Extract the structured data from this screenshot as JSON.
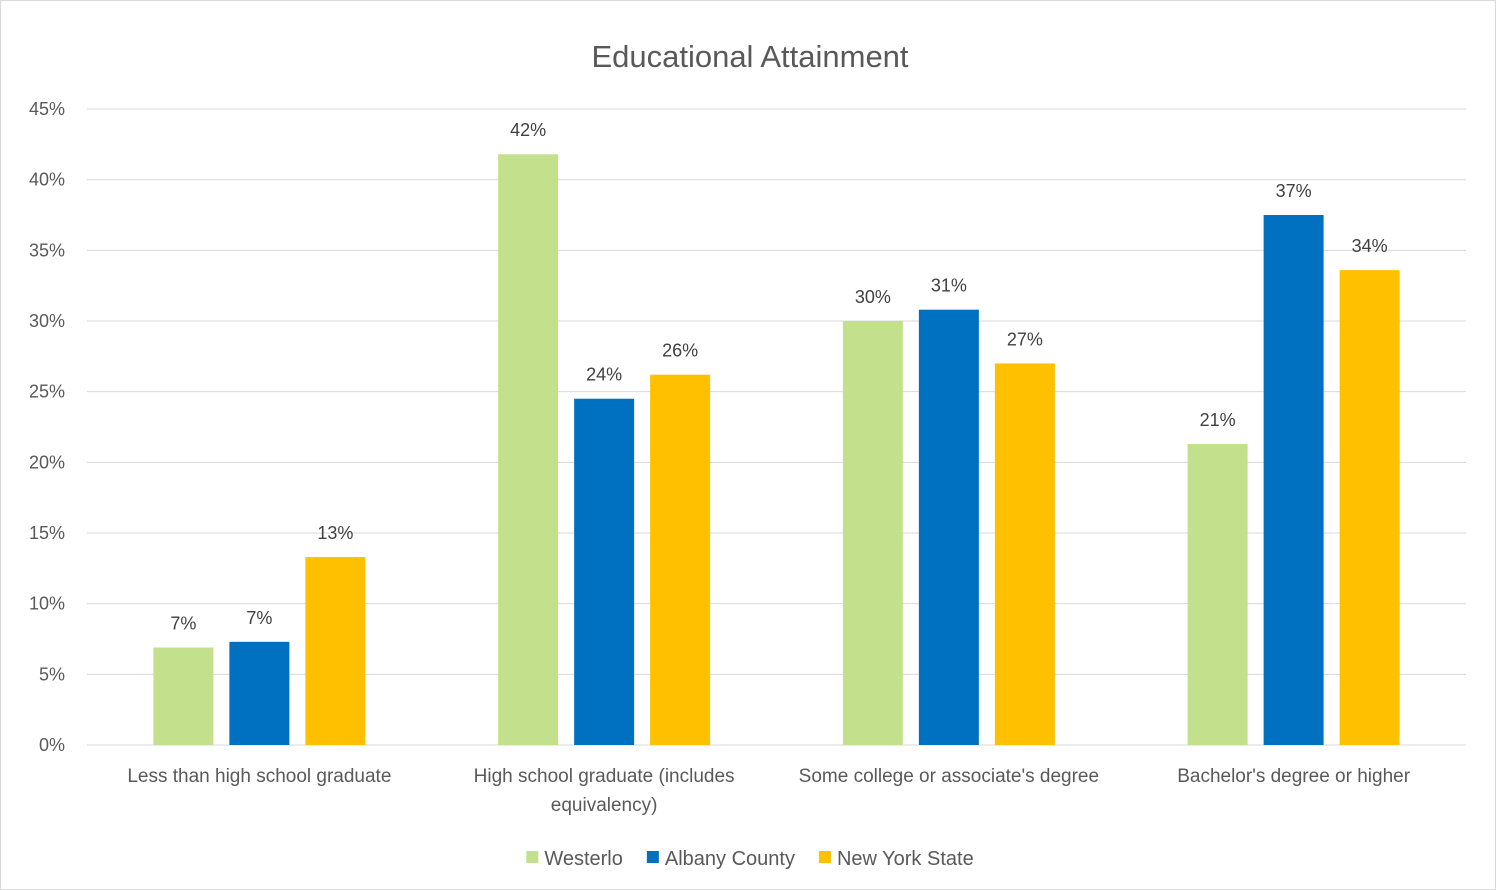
{
  "chart_data": {
    "type": "bar",
    "title": "Educational Attainment",
    "xlabel": "",
    "ylabel": "",
    "categories": [
      [
        "Less than high school graduate"
      ],
      [
        "High school graduate (includes",
        "equivalency)"
      ],
      [
        "Some college or associate's degree"
      ],
      [
        "Bachelor's degree or higher"
      ]
    ],
    "series": [
      {
        "name": "Westerlo",
        "color": "#c3e08c",
        "values": [
          6.9,
          41.8,
          30.0,
          21.3
        ],
        "labels": [
          "7%",
          "42%",
          "30%",
          "21%"
        ]
      },
      {
        "name": "Albany County",
        "color": "#0070c0",
        "values": [
          7.3,
          24.5,
          30.8,
          37.5
        ],
        "labels": [
          "7%",
          "24%",
          "31%",
          "37%"
        ]
      },
      {
        "name": "New York State",
        "color": "#ffc000",
        "values": [
          13.3,
          26.2,
          27.0,
          33.6
        ],
        "labels": [
          "13%",
          "26%",
          "27%",
          "34%"
        ]
      }
    ],
    "ylim": [
      0,
      45
    ],
    "yticks": [
      0,
      5,
      10,
      15,
      20,
      25,
      30,
      35,
      40,
      45
    ],
    "ytick_labels": [
      "0%",
      "5%",
      "10%",
      "15%",
      "20%",
      "25%",
      "30%",
      "35%",
      "40%",
      "45%"
    ],
    "grid": true,
    "legend_position": "bottom",
    "gridline_color": "#d9d9d9",
    "text_color": "#595959"
  }
}
